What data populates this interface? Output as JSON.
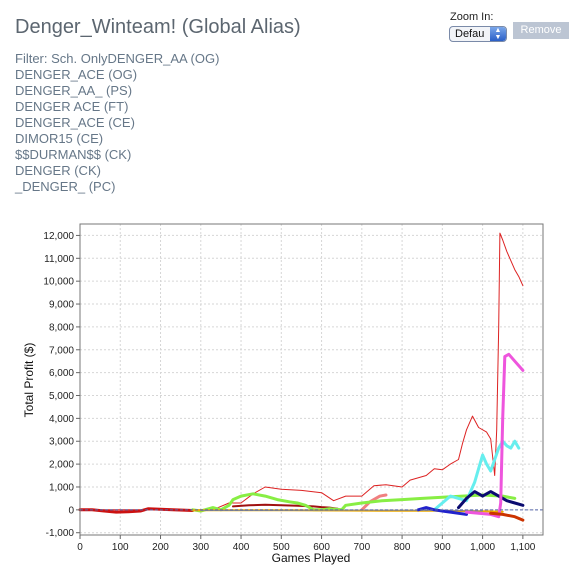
{
  "header": {
    "title": "Denger_Winteam! (Global Alias)",
    "filters": [
      "Filter: Sch. OnlyDENGER_AA (OG)",
      "DENGER_ACE (OG)",
      "DENGER_AA_ (PS)",
      "DENGER ACE (FT)",
      "DENGER_ACE (CE)",
      "DIMOR15 (CE)",
      "$$DURMAN$$ (CK)",
      "DENGER (CK)",
      "_DENGER_ (PC)"
    ]
  },
  "controls": {
    "zoom_label": "Zoom In:",
    "zoom_value": "Defau",
    "remove_label": "Remove"
  },
  "chart_data": {
    "type": "line",
    "xlabel": "Games Played",
    "ylabel": "Total Profit ($)",
    "xlim": [
      0,
      1150
    ],
    "ylim": [
      -1100,
      12500
    ],
    "xticks": [
      0,
      100,
      200,
      300,
      400,
      500,
      600,
      700,
      800,
      900,
      1000,
      1100
    ],
    "xtick_labels": [
      "0",
      "100",
      "200",
      "300",
      "400",
      "500",
      "600",
      "700",
      "800",
      "900",
      "1,000",
      "1,100"
    ],
    "yticks": [
      -1000,
      0,
      1000,
      2000,
      3000,
      4000,
      5000,
      6000,
      7000,
      8000,
      9000,
      10000,
      11000,
      12000
    ],
    "ytick_labels": [
      "-1,000",
      "0",
      "1,000",
      "2,000",
      "3,000",
      "4,000",
      "5,000",
      "6,000",
      "7,000",
      "8,000",
      "9,000",
      "10,000",
      "11,000",
      "12,000"
    ],
    "grid": true,
    "series": [
      {
        "color": "#f08080",
        "width": 3,
        "points": [
          [
            700,
            0
          ],
          [
            720,
            350
          ],
          [
            745,
            600
          ],
          [
            760,
            650
          ]
        ]
      },
      {
        "color": "#dd2222",
        "width": 1,
        "points": [
          [
            0,
            0
          ],
          [
            280,
            0
          ],
          [
            330,
            0
          ],
          [
            370,
            300
          ],
          [
            400,
            300
          ],
          [
            430,
            700
          ],
          [
            460,
            1000
          ],
          [
            500,
            900
          ],
          [
            550,
            850
          ],
          [
            600,
            750
          ],
          [
            630,
            400
          ],
          [
            660,
            600
          ],
          [
            700,
            600
          ],
          [
            730,
            1050
          ],
          [
            760,
            1100
          ],
          [
            800,
            1000
          ],
          [
            820,
            1300
          ],
          [
            860,
            1500
          ],
          [
            880,
            1800
          ],
          [
            900,
            1750
          ],
          [
            920,
            2000
          ],
          [
            940,
            2200
          ],
          [
            950,
            2900
          ],
          [
            960,
            3500
          ],
          [
            975,
            4100
          ],
          [
            990,
            3600
          ],
          [
            1010,
            3400
          ],
          [
            1020,
            3100
          ],
          [
            1030,
            1500
          ],
          [
            1035,
            3500
          ],
          [
            1040,
            8000
          ],
          [
            1043,
            12100
          ],
          [
            1050,
            11800
          ],
          [
            1060,
            11300
          ],
          [
            1070,
            10900
          ],
          [
            1080,
            10500
          ],
          [
            1090,
            10200
          ],
          [
            1100,
            9800
          ]
        ]
      },
      {
        "color": "#cc1111",
        "width": 3,
        "points": [
          [
            0,
            0
          ],
          [
            30,
            0
          ],
          [
            60,
            -50
          ],
          [
            90,
            -100
          ],
          [
            120,
            -80
          ],
          [
            150,
            -50
          ],
          [
            170,
            50
          ],
          [
            200,
            30
          ],
          [
            230,
            0
          ],
          [
            280,
            -30
          ]
        ]
      },
      {
        "color": "#a01010",
        "width": 2,
        "points": [
          [
            380,
            150
          ],
          [
            420,
            200
          ],
          [
            460,
            220
          ],
          [
            500,
            200
          ],
          [
            540,
            180
          ],
          [
            580,
            150
          ],
          [
            600,
            120
          ],
          [
            620,
            100
          ],
          [
            640,
            50
          ]
        ]
      },
      {
        "color": "#88ee44",
        "width": 3,
        "points": [
          [
            280,
            0
          ],
          [
            300,
            -50
          ],
          [
            330,
            100
          ],
          [
            350,
            0
          ],
          [
            370,
            200
          ],
          [
            380,
            450
          ],
          [
            400,
            600
          ],
          [
            430,
            700
          ],
          [
            460,
            600
          ],
          [
            490,
            450
          ],
          [
            520,
            350
          ],
          [
            540,
            300
          ],
          [
            560,
            200
          ],
          [
            580,
            0
          ],
          [
            600,
            0
          ],
          [
            620,
            50
          ],
          [
            650,
            0
          ],
          [
            660,
            200
          ],
          [
            700,
            300
          ],
          [
            750,
            400
          ],
          [
            800,
            450
          ],
          [
            850,
            500
          ],
          [
            900,
            550
          ],
          [
            950,
            600
          ],
          [
            1000,
            650
          ],
          [
            1050,
            600
          ],
          [
            1080,
            500
          ]
        ]
      },
      {
        "color": "#eeaa00",
        "width": 2,
        "points": [
          [
            280,
            -20
          ],
          [
            400,
            -20
          ],
          [
            520,
            -20
          ],
          [
            640,
            -30
          ],
          [
            760,
            -40
          ],
          [
            880,
            -40
          ],
          [
            1000,
            -60
          ],
          [
            1050,
            -80
          ]
        ]
      },
      {
        "color": "#888888",
        "width": 1,
        "points": [
          [
            300,
            -30
          ],
          [
            450,
            -30
          ],
          [
            600,
            -20
          ],
          [
            700,
            -10
          ],
          [
            800,
            -20
          ],
          [
            900,
            -30
          ],
          [
            1000,
            -50
          ]
        ]
      },
      {
        "color": "#66eeee",
        "width": 3,
        "points": [
          [
            880,
            0
          ],
          [
            900,
            300
          ],
          [
            920,
            600
          ],
          [
            940,
            500
          ],
          [
            960,
            400
          ],
          [
            980,
            1200
          ],
          [
            990,
            1800
          ],
          [
            1000,
            2400
          ],
          [
            1010,
            2000
          ],
          [
            1020,
            1700
          ],
          [
            1030,
            2200
          ],
          [
            1040,
            2700
          ],
          [
            1050,
            3000
          ],
          [
            1060,
            2800
          ],
          [
            1070,
            2700
          ],
          [
            1080,
            3000
          ],
          [
            1090,
            2700
          ]
        ]
      },
      {
        "color": "#2222cc",
        "width": 3,
        "points": [
          [
            840,
            0
          ],
          [
            860,
            100
          ],
          [
            880,
            0
          ],
          [
            900,
            -50
          ],
          [
            920,
            -100
          ],
          [
            940,
            -150
          ],
          [
            960,
            -200
          ]
        ]
      },
      {
        "color": "#0b0b70",
        "width": 3,
        "points": [
          [
            940,
            100
          ],
          [
            960,
            500
          ],
          [
            980,
            800
          ],
          [
            1000,
            600
          ],
          [
            1020,
            800
          ],
          [
            1040,
            600
          ],
          [
            1060,
            400
          ],
          [
            1080,
            300
          ],
          [
            1100,
            200
          ]
        ]
      },
      {
        "color": "#ee55dd",
        "width": 3,
        "points": [
          [
            960,
            -100
          ],
          [
            990,
            -150
          ],
          [
            1020,
            -200
          ],
          [
            1040,
            -300
          ],
          [
            1045,
            300
          ],
          [
            1050,
            4000
          ],
          [
            1055,
            6700
          ],
          [
            1065,
            6800
          ],
          [
            1080,
            6500
          ],
          [
            1100,
            6100
          ]
        ]
      },
      {
        "color": "#cc3300",
        "width": 3,
        "points": [
          [
            1020,
            -150
          ],
          [
            1050,
            -200
          ],
          [
            1080,
            -300
          ],
          [
            1100,
            -450
          ]
        ]
      }
    ]
  }
}
